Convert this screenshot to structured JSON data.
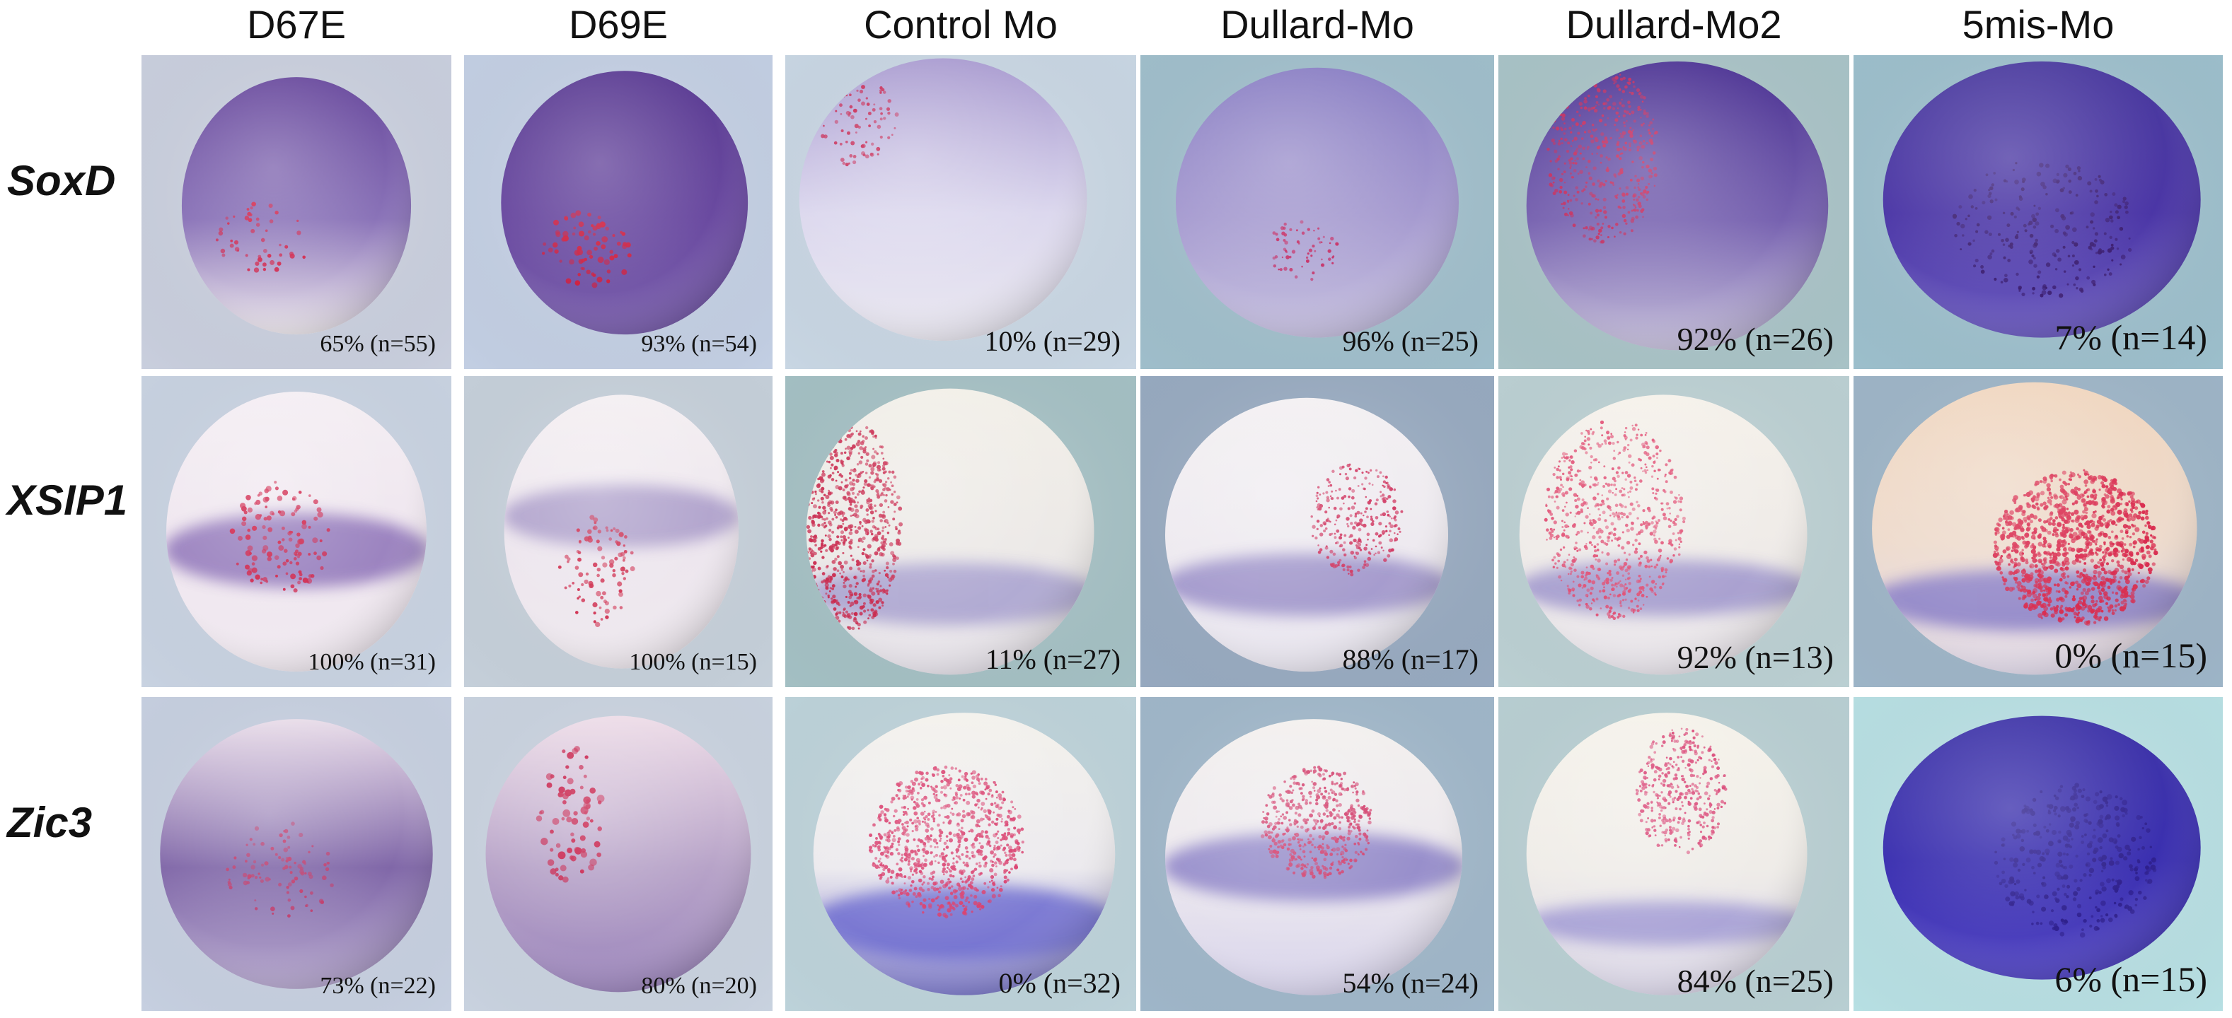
{
  "columns": [
    "D67E",
    "D69E",
    "Control Mo",
    "Dullard-Mo",
    "Dullard-Mo2",
    "5mis-Mo"
  ],
  "rows": [
    {
      "label": "SoxD",
      "percentages": [
        "65% (n=55)",
        "93% (n=54)",
        "10% (n=29)",
        "96% (n=25)",
        "92% (n=26)",
        "7% (n=14)"
      ]
    },
    {
      "label": "XSIP1",
      "percentages": [
        "100% (n=31)",
        "100% (n=15)",
        "11% (n=27)",
        "88% (n=17)",
        "92% (n=13)",
        "0% (n=15)"
      ]
    },
    {
      "label": "Zic3",
      "percentages": [
        "73% (n=22)",
        "80% (n=20)",
        "0% (n=32)",
        "54% (n=24)",
        "84% (n=25)",
        "6% (n=15)"
      ]
    }
  ],
  "colors": {
    "background": "#ffffff",
    "stain_purple": "#5a3fa0",
    "stain_blue_violet": "#3a2fb0",
    "injection_red": "#d2284e",
    "embryo_pale": "#f1eef6",
    "embryo_beige": "#f3ddc8"
  }
}
